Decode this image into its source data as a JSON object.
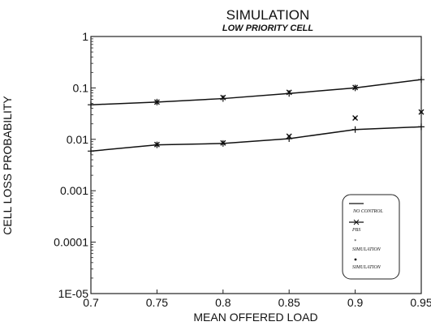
{
  "chart_data": {
    "type": "line",
    "title": "SIMULATION",
    "subtitle": "LOW PRIORITY CELL",
    "xlabel": "MEAN OFFERED LOAD",
    "ylabel": "CELL LOSS PROBABILITY",
    "xlim": [
      0.7,
      0.95
    ],
    "ylim": [
      1e-05,
      1
    ],
    "y_scale": "log",
    "grid": false,
    "legend_position": "bottom-right",
    "x_ticks": [
      0.7,
      0.75,
      0.8,
      0.85,
      0.9,
      0.95
    ],
    "x_tick_labels": [
      "0.7",
      "0.75",
      "0.8",
      "0.85",
      "0.9",
      "0.95"
    ],
    "y_ticks": [
      1,
      0.1,
      0.01,
      0.001,
      0.0001,
      1e-05
    ],
    "y_tick_labels": [
      "1",
      "0.1",
      "0.01",
      "0.001",
      "0.0001",
      "1E-05"
    ],
    "series": [
      {
        "name": "NO CONTROL",
        "kind": "line",
        "x": [
          0.7,
          0.75,
          0.8,
          0.85,
          0.9,
          0.95
        ],
        "values": [
          0.047,
          0.053,
          0.062,
          0.078,
          0.1,
          0.145
        ]
      },
      {
        "name": "PBS",
        "kind": "line",
        "x": [
          0.7,
          0.75,
          0.8,
          0.85,
          0.9,
          0.95
        ],
        "values": [
          0.0059,
          0.0078,
          0.0083,
          0.0103,
          0.0155,
          0.0175
        ]
      },
      {
        "name": "SIMULATION",
        "kind": "points",
        "x": [
          0.75,
          0.8,
          0.85,
          0.9
        ],
        "values": [
          0.053,
          0.065,
          0.082,
          0.102
        ]
      },
      {
        "name": "SIMULATION",
        "kind": "points",
        "x": [
          0.75,
          0.8,
          0.85,
          0.9,
          0.95
        ],
        "values": [
          0.0079,
          0.0085,
          0.0115,
          0.026,
          0.034
        ]
      }
    ]
  }
}
